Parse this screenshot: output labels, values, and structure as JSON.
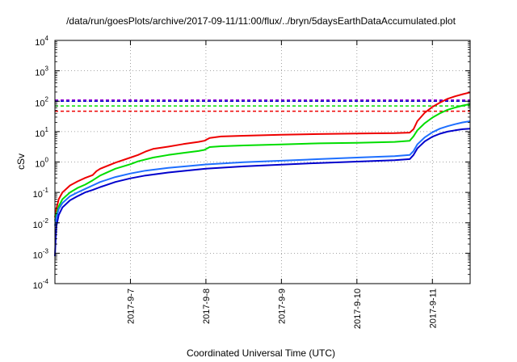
{
  "chart_data": {
    "type": "line",
    "title": "/data/run/goesPlots/archive/2017-09-11/11:00/flux/../bryn/5daysEarthDataAccumulated.plot",
    "xlabel": "Coordinated Universal Time (UTC)",
    "ylabel": "cSv",
    "y_scale": "log",
    "ylim": [
      0.0001,
      10000
    ],
    "xlim": [
      0,
      5.5
    ],
    "x_origin_date": "2017-9-6",
    "x_units": "days",
    "grid": true,
    "legend": "none",
    "y_ticks": [
      {
        "value": 0.0001,
        "base": "10",
        "exp": "-4"
      },
      {
        "value": 0.001,
        "base": "10",
        "exp": "-3"
      },
      {
        "value": 0.01,
        "base": "10",
        "exp": "-2"
      },
      {
        "value": 0.1,
        "base": "10",
        "exp": "-1"
      },
      {
        "value": 1,
        "base": "10",
        "exp": "0"
      },
      {
        "value": 10,
        "base": "10",
        "exp": "1"
      },
      {
        "value": 100,
        "base": "10",
        "exp": "2"
      },
      {
        "value": 1000,
        "base": "10",
        "exp": "3"
      },
      {
        "value": 10000,
        "base": "10",
        "exp": "4"
      }
    ],
    "x_ticks": [
      {
        "value": 1,
        "label": "2017-9-7"
      },
      {
        "value": 2,
        "label": "2017-9-8"
      },
      {
        "value": 3,
        "label": "2017-9-9"
      },
      {
        "value": 4,
        "label": "2017-9-10"
      },
      {
        "value": 5,
        "label": "2017-9-11"
      }
    ],
    "thresholds": [
      {
        "color": "#9400d3",
        "value": 110
      },
      {
        "color": "#0000cc",
        "value": 100
      },
      {
        "color": "#00dd00",
        "value": 70
      },
      {
        "color": "#ee0000",
        "value": 47
      }
    ],
    "series": [
      {
        "color": "#ee0000",
        "points": [
          [
            0,
            0.015
          ],
          [
            0.02,
            0.03
          ],
          [
            0.05,
            0.06
          ],
          [
            0.1,
            0.1
          ],
          [
            0.2,
            0.17
          ],
          [
            0.3,
            0.23
          ],
          [
            0.4,
            0.3
          ],
          [
            0.5,
            0.37
          ],
          [
            0.55,
            0.5
          ],
          [
            0.6,
            0.6
          ],
          [
            0.8,
            0.95
          ],
          [
            1.0,
            1.4
          ],
          [
            1.1,
            1.7
          ],
          [
            1.2,
            2.2
          ],
          [
            1.3,
            2.7
          ],
          [
            1.5,
            3.2
          ],
          [
            1.7,
            3.9
          ],
          [
            1.9,
            4.6
          ],
          [
            1.98,
            5.0
          ],
          [
            2.05,
            6.2
          ],
          [
            2.2,
            6.9
          ],
          [
            2.5,
            7.3
          ],
          [
            3.0,
            7.9
          ],
          [
            3.5,
            8.3
          ],
          [
            4.0,
            8.6
          ],
          [
            4.5,
            8.9
          ],
          [
            4.7,
            9.3
          ],
          [
            4.75,
            12
          ],
          [
            4.8,
            22
          ],
          [
            4.9,
            42
          ],
          [
            5.0,
            65
          ],
          [
            5.1,
            90
          ],
          [
            5.2,
            120
          ],
          [
            5.3,
            145
          ],
          [
            5.4,
            170
          ],
          [
            5.5,
            195
          ]
        ]
      },
      {
        "color": "#00dd00",
        "points": [
          [
            0,
            0.012
          ],
          [
            0.02,
            0.02
          ],
          [
            0.05,
            0.035
          ],
          [
            0.1,
            0.06
          ],
          [
            0.2,
            0.1
          ],
          [
            0.3,
            0.14
          ],
          [
            0.4,
            0.18
          ],
          [
            0.5,
            0.25
          ],
          [
            0.55,
            0.3
          ],
          [
            0.6,
            0.36
          ],
          [
            0.8,
            0.6
          ],
          [
            1.0,
            0.85
          ],
          [
            1.1,
            1.05
          ],
          [
            1.3,
            1.4
          ],
          [
            1.5,
            1.7
          ],
          [
            1.7,
            2.0
          ],
          [
            1.9,
            2.3
          ],
          [
            1.98,
            2.5
          ],
          [
            2.05,
            3.1
          ],
          [
            2.2,
            3.3
          ],
          [
            2.5,
            3.5
          ],
          [
            3.0,
            3.8
          ],
          [
            3.5,
            4.1
          ],
          [
            4.0,
            4.3
          ],
          [
            4.5,
            4.6
          ],
          [
            4.7,
            5.0
          ],
          [
            4.75,
            7
          ],
          [
            4.8,
            11
          ],
          [
            4.9,
            19
          ],
          [
            5.0,
            29
          ],
          [
            5.1,
            40
          ],
          [
            5.2,
            52
          ],
          [
            5.3,
            62
          ],
          [
            5.4,
            72
          ],
          [
            5.5,
            80
          ]
        ]
      },
      {
        "color": "#1e6fff",
        "points": [
          [
            0,
            0.008
          ],
          [
            0.02,
            0.015
          ],
          [
            0.05,
            0.028
          ],
          [
            0.1,
            0.045
          ],
          [
            0.2,
            0.075
          ],
          [
            0.3,
            0.1
          ],
          [
            0.4,
            0.13
          ],
          [
            0.5,
            0.17
          ],
          [
            0.6,
            0.22
          ],
          [
            0.8,
            0.32
          ],
          [
            1.0,
            0.42
          ],
          [
            1.2,
            0.52
          ],
          [
            1.5,
            0.64
          ],
          [
            1.8,
            0.75
          ],
          [
            2.0,
            0.83
          ],
          [
            2.5,
            0.98
          ],
          [
            3.0,
            1.1
          ],
          [
            3.5,
            1.25
          ],
          [
            4.0,
            1.4
          ],
          [
            4.5,
            1.55
          ],
          [
            4.7,
            1.7
          ],
          [
            4.75,
            2.3
          ],
          [
            4.8,
            3.8
          ],
          [
            4.9,
            6.5
          ],
          [
            5.0,
            9.5
          ],
          [
            5.1,
            12.5
          ],
          [
            5.2,
            15
          ],
          [
            5.3,
            17.5
          ],
          [
            5.4,
            20
          ],
          [
            5.5,
            22
          ]
        ]
      },
      {
        "color": "#0000cc",
        "points": [
          [
            0,
            0.0008
          ],
          [
            0.01,
            0.003
          ],
          [
            0.02,
            0.008
          ],
          [
            0.05,
            0.018
          ],
          [
            0.1,
            0.032
          ],
          [
            0.2,
            0.055
          ],
          [
            0.3,
            0.075
          ],
          [
            0.4,
            0.1
          ],
          [
            0.5,
            0.12
          ],
          [
            0.6,
            0.15
          ],
          [
            0.8,
            0.22
          ],
          [
            1.0,
            0.29
          ],
          [
            1.2,
            0.36
          ],
          [
            1.5,
            0.45
          ],
          [
            1.8,
            0.54
          ],
          [
            2.0,
            0.6
          ],
          [
            2.5,
            0.72
          ],
          [
            3.0,
            0.82
          ],
          [
            3.5,
            0.93
          ],
          [
            4.0,
            1.03
          ],
          [
            4.5,
            1.15
          ],
          [
            4.7,
            1.25
          ],
          [
            4.75,
            1.7
          ],
          [
            4.8,
            2.8
          ],
          [
            4.9,
            4.8
          ],
          [
            5.0,
            6.8
          ],
          [
            5.1,
            8.5
          ],
          [
            5.2,
            10
          ],
          [
            5.3,
            11
          ],
          [
            5.4,
            12
          ],
          [
            5.5,
            12.5
          ]
        ]
      }
    ]
  }
}
